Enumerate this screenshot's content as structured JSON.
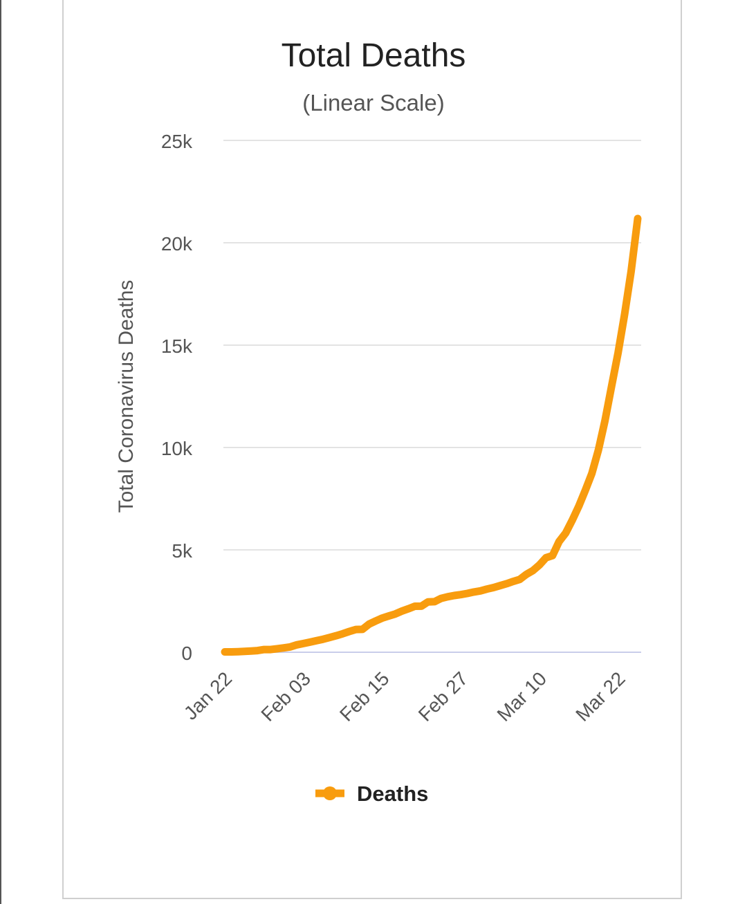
{
  "chart_data": {
    "type": "line",
    "title": "Total Deaths",
    "subtitle": "(Linear Scale)",
    "xlabel": "",
    "ylabel": "Total Coronavirus Deaths",
    "ylim": [
      0,
      25000
    ],
    "yticks": [
      "0",
      "5k",
      "10k",
      "15k",
      "20k",
      "25k"
    ],
    "ytick_values": [
      0,
      5000,
      10000,
      15000,
      20000,
      25000
    ],
    "xticks": [
      "Jan 22",
      "Feb 03",
      "Feb 15",
      "Feb 27",
      "Mar 10",
      "Mar 22"
    ],
    "xtick_day_index": [
      0,
      12,
      24,
      36,
      48,
      60
    ],
    "grid": true,
    "legend": {
      "position": "bottom",
      "entries": [
        "Deaths"
      ]
    },
    "colors": {
      "series": "#f89c0e",
      "grid": "#e3e3e3",
      "baseline": "#c9cdea"
    },
    "series": [
      {
        "name": "Deaths",
        "x_day_index_start": 0,
        "values": [
          17,
          18,
          26,
          42,
          56,
          82,
          131,
          133,
          171,
          213,
          259,
          362,
          426,
          492,
          564,
          634,
          719,
          806,
          906,
          1013,
          1113,
          1118,
          1371,
          1523,
          1666,
          1770,
          1868,
          2007,
          2122,
          2247,
          2251,
          2458,
          2469,
          2629,
          2708,
          2770,
          2814,
          2872,
          2941,
          2996,
          3085,
          3160,
          3254,
          3348,
          3460,
          3558,
          3802,
          3988,
          4262,
          4615,
          4720,
          5404,
          5819,
          6440,
          7126,
          7905,
          8733,
          9867,
          11299,
          12973,
          14623,
          16497,
          18615,
          21181
        ]
      }
    ]
  }
}
